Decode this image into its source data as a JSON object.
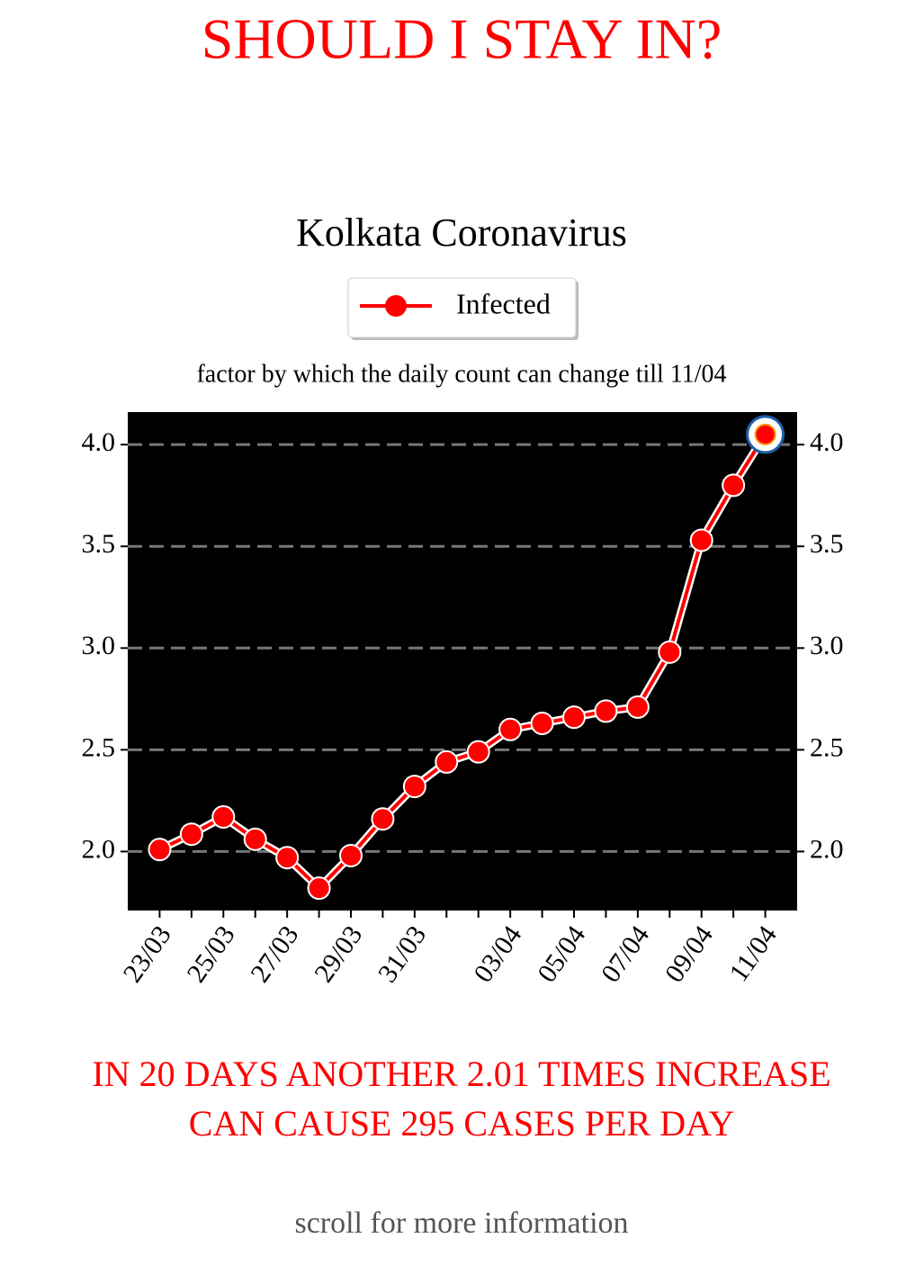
{
  "header": {
    "title": "SHOULD I STAY IN?"
  },
  "chart_data": {
    "type": "line",
    "title": "Kolkata Coronavirus",
    "subtitle": "factor by which the daily count can change till 11/04",
    "categories": [
      "23/03",
      null,
      "25/03",
      null,
      "27/03",
      null,
      "29/03",
      null,
      "31/03",
      null,
      null,
      "03/04",
      null,
      "05/04",
      null,
      "07/04",
      null,
      "09/04",
      null,
      "11/04"
    ],
    "series": [
      {
        "name": "Infected",
        "color": "#ff0000",
        "values": [
          2.01,
          2.085,
          2.17,
          2.06,
          1.97,
          1.82,
          1.98,
          2.16,
          2.32,
          2.44,
          2.49,
          2.6,
          2.63,
          2.66,
          2.69,
          2.71,
          2.98,
          3.53,
          3.8,
          4.05
        ]
      }
    ],
    "ylim": [
      1.71,
      4.16
    ],
    "yticks": [
      {
        "value": 2,
        "label": "2.0"
      },
      2.5,
      {
        "value": 3,
        "label": "3.0"
      },
      3.5,
      {
        "value": 4,
        "label": "4.0"
      }
    ],
    "grid": true,
    "legend": "top"
  },
  "footer": {
    "lines": [
      "IN 20 DAYS ANOTHER 2.01 TIMES INCREASE",
      "CAN CAUSE 295 CASES PER DAY"
    ],
    "hint": "scroll for more information"
  }
}
